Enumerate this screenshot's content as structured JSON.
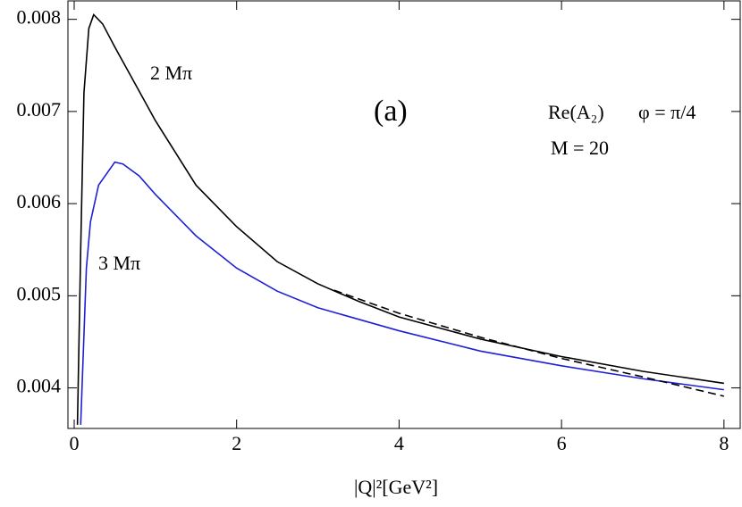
{
  "chart_data": {
    "type": "line",
    "xlabel": "|Q|²[GeV²]",
    "annotations": [
      "2 Mπ",
      "3 Mπ",
      "(a)",
      "Re(A₂)",
      "φ = π/4",
      "M = 20"
    ],
    "xlim": [
      -0.077,
      8.2
    ],
    "ylim": [
      0.00356,
      0.0082
    ],
    "xticks": [
      0,
      2,
      4,
      6,
      8
    ],
    "yticks": [
      0.004,
      0.005,
      0.006,
      0.007,
      0.008
    ],
    "series": [
      {
        "color": "#000000",
        "dash": false,
        "x": [
          0.04,
          0.08,
          0.12,
          0.18,
          0.24,
          0.35,
          0.5,
          0.75,
          1.0,
          1.5,
          2.0,
          2.5,
          3.0,
          3.5,
          4.0,
          5.0,
          6.0,
          7.0,
          8.0
        ],
        "values": [
          0.0036,
          0.0055,
          0.0072,
          0.0079,
          0.00805,
          0.00795,
          0.0077,
          0.0073,
          0.0069,
          0.0062,
          0.00575,
          0.00537,
          0.00513,
          0.00494,
          0.00477,
          0.00453,
          0.00434,
          0.00418,
          0.00405
        ]
      },
      {
        "color": "#1f1fd6",
        "dash": false,
        "x": [
          0.08,
          0.15,
          0.2,
          0.3,
          0.5,
          0.6,
          0.8,
          1.0,
          1.5,
          2.0,
          2.5,
          3.0,
          4.0,
          5.0,
          6.0,
          7.0,
          8.0
        ],
        "values": [
          0.0036,
          0.0053,
          0.0058,
          0.0062,
          0.00645,
          0.00643,
          0.0063,
          0.0061,
          0.00565,
          0.0053,
          0.00505,
          0.00487,
          0.00462,
          0.0044,
          0.00424,
          0.0041,
          0.00398
        ]
      },
      {
        "color": "#000000",
        "dash": true,
        "x": [
          3.2,
          4.0,
          5.0,
          6.0,
          7.0,
          8.0
        ],
        "values": [
          0.00506,
          0.00481,
          0.00455,
          0.00432,
          0.00412,
          0.00391
        ]
      }
    ]
  }
}
